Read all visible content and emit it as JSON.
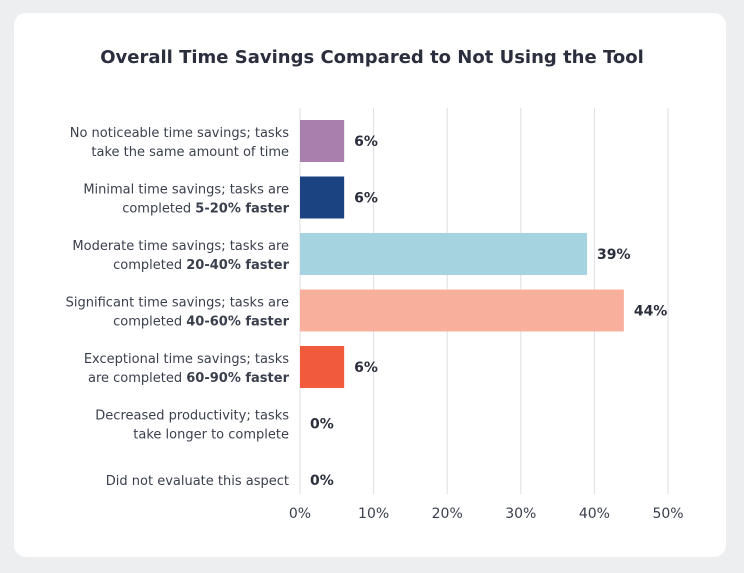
{
  "chart_data": {
    "type": "bar",
    "orientation": "horizontal",
    "title": "Overall Time Savings Compared to Not Using the Tool",
    "categories": [
      {
        "line1": "No noticeable time savings; tasks",
        "line2_plain": "take the same amount of time",
        "line2_bold": ""
      },
      {
        "line1": "Minimal time savings; tasks are",
        "line2_plain": "completed ",
        "line2_bold": "5-20% faster"
      },
      {
        "line1": "Moderate time savings; tasks are",
        "line2_plain": "completed ",
        "line2_bold": "20-40% faster"
      },
      {
        "line1": "Significant time savings; tasks are",
        "line2_plain": "completed ",
        "line2_bold": "40-60% faster"
      },
      {
        "line1": "Exceptional time savings; tasks",
        "line2_plain": "are completed ",
        "line2_bold": "60-90% faster"
      },
      {
        "line1": "Decreased productivity; tasks",
        "line2_plain": "take longer to complete",
        "line2_bold": ""
      },
      {
        "line1": "Did not evaluate this aspect",
        "line2_plain": "",
        "line2_bold": ""
      }
    ],
    "values": [
      6,
      6,
      39,
      44,
      6,
      0,
      0
    ],
    "value_labels": [
      "6%",
      "6%",
      "39%",
      "44%",
      "6%",
      "0%",
      "0%"
    ],
    "colors": [
      "#a97fad",
      "#1c4381",
      "#a5d3df",
      "#f8b09c",
      "#f15a3a",
      "#cccccc",
      "#cccccc"
    ],
    "xlim": [
      0,
      50
    ],
    "xticks": [
      0,
      10,
      20,
      30,
      40,
      50
    ],
    "xtick_labels": [
      "0%",
      "10%",
      "20%",
      "30%",
      "40%",
      "50%"
    ],
    "grid": true
  }
}
